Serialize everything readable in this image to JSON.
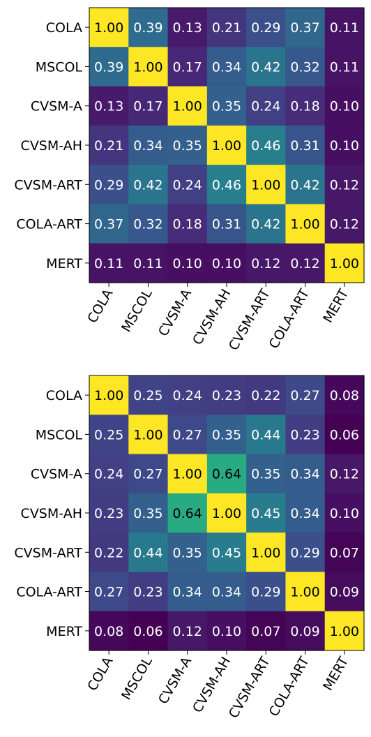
{
  "chart_data": [
    {
      "type": "heatmap",
      "labels": [
        "COLA",
        "MSCOL",
        "CVSM-A",
        "CVSM-AH",
        "CVSM-ART",
        "COLA-ART",
        "MERT"
      ],
      "colormap": "viridis",
      "vmin": 0.06,
      "vmax": 1.0,
      "values": [
        [
          1.0,
          0.39,
          0.13,
          0.21,
          0.29,
          0.37,
          0.11
        ],
        [
          0.39,
          1.0,
          0.17,
          0.34,
          0.42,
          0.32,
          0.11
        ],
        [
          0.13,
          0.17,
          1.0,
          0.35,
          0.24,
          0.18,
          0.1
        ],
        [
          0.21,
          0.34,
          0.35,
          1.0,
          0.46,
          0.31,
          0.1
        ],
        [
          0.29,
          0.42,
          0.24,
          0.46,
          1.0,
          0.42,
          0.12
        ],
        [
          0.37,
          0.32,
          0.18,
          0.31,
          0.42,
          1.0,
          0.12
        ],
        [
          0.11,
          0.11,
          0.1,
          0.1,
          0.12,
          0.12,
          1.0
        ]
      ]
    },
    {
      "type": "heatmap",
      "labels": [
        "COLA",
        "MSCOL",
        "CVSM-A",
        "CVSM-AH",
        "CVSM-ART",
        "COLA-ART",
        "MERT"
      ],
      "colormap": "viridis",
      "vmin": 0.06,
      "vmax": 1.0,
      "values": [
        [
          1.0,
          0.25,
          0.24,
          0.23,
          0.22,
          0.27,
          0.08
        ],
        [
          0.25,
          1.0,
          0.27,
          0.35,
          0.44,
          0.23,
          0.06
        ],
        [
          0.24,
          0.27,
          1.0,
          0.64,
          0.35,
          0.34,
          0.12
        ],
        [
          0.23,
          0.35,
          0.64,
          1.0,
          0.45,
          0.34,
          0.1
        ],
        [
          0.22,
          0.44,
          0.35,
          0.45,
          1.0,
          0.29,
          0.07
        ],
        [
          0.27,
          0.23,
          0.34,
          0.34,
          0.29,
          1.0,
          0.09
        ],
        [
          0.08,
          0.06,
          0.12,
          0.1,
          0.07,
          0.09,
          1.0
        ]
      ]
    }
  ]
}
